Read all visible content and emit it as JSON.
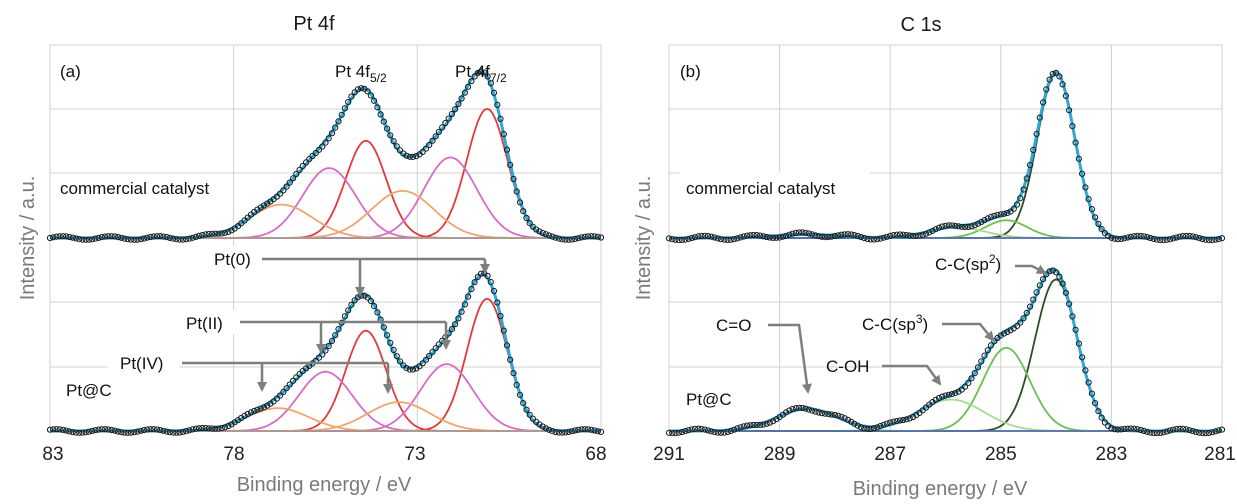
{
  "chart_data": [
    {
      "type": "line",
      "panel_label": "(a)",
      "title": "Pt 4f",
      "xlabel": "Binding energy / eV",
      "ylabel": "Intensity / a.u.",
      "xlim": [
        83,
        68
      ],
      "xticks": [
        "83",
        "78",
        "73",
        "68"
      ],
      "x_reversed": true,
      "grid": true,
      "spectra": [
        {
          "name": "commercial catalyst",
          "baseline": 0,
          "envelope_max": 1.0,
          "peaks": [
            {
              "label": "Pt(0) 4f7/2",
              "center": 71.1,
              "height": 0.85,
              "fwhm": 1.3,
              "color": "#e23a3a"
            },
            {
              "label": "Pt(0) 4f5/2",
              "center": 74.4,
              "height": 0.64,
              "fwhm": 1.3,
              "color": "#e23a3a"
            },
            {
              "label": "Pt(II) 4f7/2",
              "center": 72.1,
              "height": 0.53,
              "fwhm": 1.7,
              "color": "#d96bc6"
            },
            {
              "label": "Pt(II) 4f5/2",
              "center": 75.4,
              "height": 0.46,
              "fwhm": 1.7,
              "color": "#d96bc6"
            },
            {
              "label": "Pt(IV) 4f7/2",
              "center": 73.4,
              "height": 0.31,
              "fwhm": 2.0,
              "color": "#f0a46e"
            },
            {
              "label": "Pt(IV) 4f5/2",
              "center": 76.7,
              "height": 0.22,
              "fwhm": 2.0,
              "color": "#f0a46e"
            }
          ]
        },
        {
          "name": "Pt@C",
          "baseline": 0,
          "envelope_max": 1.0,
          "peaks": [
            {
              "label": "Pt(0) 4f7/2",
              "center": 71.1,
              "height": 0.87,
              "fwhm": 1.3,
              "color": "#e23a3a"
            },
            {
              "label": "Pt(0) 4f5/2",
              "center": 74.4,
              "height": 0.66,
              "fwhm": 1.3,
              "color": "#e23a3a"
            },
            {
              "label": "Pt(II) 4f7/2",
              "center": 72.2,
              "height": 0.44,
              "fwhm": 1.7,
              "color": "#d96bc6"
            },
            {
              "label": "Pt(II) 4f5/2",
              "center": 75.5,
              "height": 0.39,
              "fwhm": 1.7,
              "color": "#d96bc6"
            },
            {
              "label": "Pt(IV) 4f7/2",
              "center": 73.5,
              "height": 0.19,
              "fwhm": 2.0,
              "color": "#f0a46e"
            },
            {
              "label": "Pt(IV) 4f5/2",
              "center": 76.8,
              "height": 0.15,
              "fwhm": 2.0,
              "color": "#f0a46e"
            }
          ]
        }
      ],
      "annotations": [
        "Pt 4f",
        "5/2",
        "Pt 4f",
        "7/2",
        "Pt(0)",
        "Pt(II)",
        "Pt(IV)"
      ]
    },
    {
      "type": "line",
      "panel_label": "(b)",
      "title": "C 1s",
      "xlabel": "Binding energy / eV",
      "ylabel": "Intensity / a.u.",
      "xlim": [
        291,
        281
      ],
      "xticks": [
        "291",
        "289",
        "287",
        "285",
        "283",
        "281"
      ],
      "x_reversed": true,
      "grid": true,
      "spectra": [
        {
          "name": "commercial catalyst",
          "baseline": 0,
          "envelope_max": 1.0,
          "peaks": [
            {
              "label": "C-C(sp2)",
              "center": 284.0,
              "height": 0.93,
              "fwhm": 0.8,
              "color": "#2e4d26"
            },
            {
              "label": "C-C(sp3)",
              "center": 284.9,
              "height": 0.1,
              "fwhm": 0.9,
              "color": "#6cbf4e"
            },
            {
              "label": "C-OH",
              "center": 285.8,
              "height": 0.06,
              "fwhm": 1.2,
              "color": "#a8d990"
            },
            {
              "label": "C=O",
              "center": 288.5,
              "height": 0.02,
              "fwhm": 1.4,
              "color": "#c9e8b8"
            }
          ]
        },
        {
          "name": "Pt@C",
          "baseline": 0,
          "envelope_max": 1.0,
          "peaks": [
            {
              "label": "C-C(sp2)",
              "center": 284.0,
              "height": 0.82,
              "fwhm": 0.9,
              "color": "#2e4d26"
            },
            {
              "label": "C-C(sp3)",
              "center": 284.9,
              "height": 0.45,
              "fwhm": 1.0,
              "color": "#6cbf4e"
            },
            {
              "label": "C-OH",
              "center": 285.9,
              "height": 0.17,
              "fwhm": 1.4,
              "color": "#a8d990"
            },
            {
              "label": "C=O",
              "center": 288.5,
              "height": 0.12,
              "fwhm": 1.3,
              "color": "#c9e8b8"
            }
          ]
        }
      ],
      "annotations": [
        "C=O",
        "C-C(sp",
        "2",
        ")",
        "C-C(sp",
        "3",
        ")",
        "C-OH"
      ]
    }
  ],
  "colors": {
    "envelope": "#2fa8d8",
    "points": "#1a1a1a",
    "baseline": "#3a57a8",
    "grid": "#d0d0d0",
    "arrow": "#7f7f7f"
  }
}
